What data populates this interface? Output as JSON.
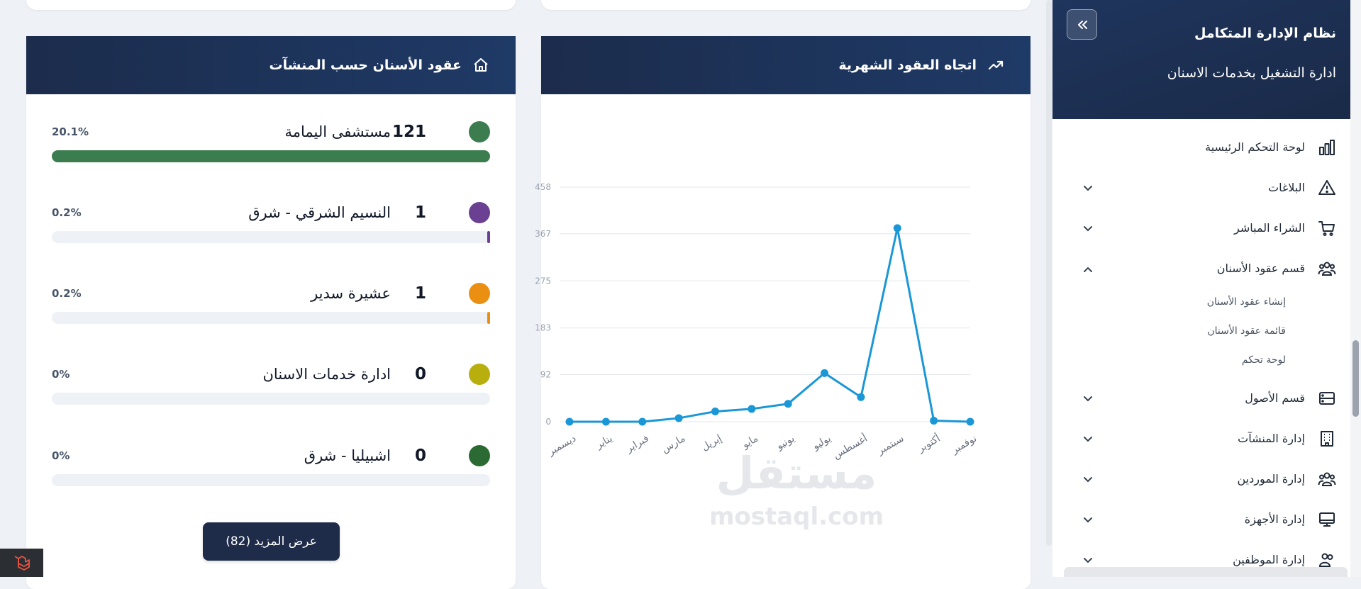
{
  "facilities_card": {
    "title": "عقود الأسنان حسب المنشآت",
    "more_button": "عرض المزيد (82)",
    "items": [
      {
        "name": "مستشفى اليمامة",
        "count": "121",
        "percent": "20.1%",
        "fill": 1.0,
        "color": "#3b7d4f"
      },
      {
        "name": "النسيم الشرقي - شرق",
        "count": "1",
        "percent": "0.2%",
        "fill": 0.005,
        "color": "#6b3f91"
      },
      {
        "name": "عشيرة سدير",
        "count": "1",
        "percent": "0.2%",
        "fill": 0.005,
        "color": "#ea8f12"
      },
      {
        "name": "ادارة خدمات الاسنان",
        "count": "0",
        "percent": "0%",
        "fill": 0,
        "color": "#b8ae0d"
      },
      {
        "name": "اشبيليا - شرق",
        "count": "0",
        "percent": "0%",
        "fill": 0,
        "color": "#2b6a32"
      }
    ]
  },
  "trend_card": {
    "title": "اتجاه العقود الشهرية"
  },
  "chart_data": {
    "type": "line",
    "title": "اتجاه العقود الشهرية",
    "categories": [
      "ديسمبر",
      "يناير",
      "فبراير",
      "مارس",
      "إبريل",
      "مايو",
      "يونيو",
      "يوليو",
      "أغسطس",
      "سبتمبر",
      "أكتوبر",
      "نوفمبر"
    ],
    "values": [
      0,
      0,
      0,
      7,
      20,
      25,
      35,
      95,
      48,
      378,
      2,
      0
    ],
    "y_ticks": [
      "0",
      "92",
      "183",
      "275",
      "367",
      "458"
    ],
    "ylim": [
      0,
      458
    ],
    "color": "#1a97d6",
    "grid": true
  },
  "watermark": {
    "arabic": "مستقل",
    "latin": "mostaql.com"
  },
  "sidebar": {
    "title": "نظام الإدارة المتكامل",
    "subtitle": "ادارة التشغيل بخدمات الاسنان",
    "items": [
      {
        "label": "لوحة التحكم الرئيسية",
        "icon": "bar-chart-icon",
        "chevron": "none"
      },
      {
        "label": "البلاغات",
        "icon": "warning-icon",
        "chevron": "down"
      },
      {
        "label": "الشراء المباشر",
        "icon": "cart-icon",
        "chevron": "down"
      },
      {
        "label": "قسم عقود الأسنان",
        "icon": "users-icon",
        "chevron": "up"
      },
      {
        "label": "قسم الأصول",
        "icon": "server-icon",
        "chevron": "down"
      },
      {
        "label": "إدارة المنشآت",
        "icon": "building-icon",
        "chevron": "down"
      },
      {
        "label": "إدارة الموردين",
        "icon": "users-icon",
        "chevron": "down"
      },
      {
        "label": "إدارة الأجهزة",
        "icon": "monitor-icon",
        "chevron": "down"
      },
      {
        "label": "إدارة الموظفين",
        "icon": "users-icon",
        "chevron": "down"
      }
    ],
    "submenu": [
      "إنشاء عقود الأسنان",
      "قائمة عقود الأسنان",
      "لوحة تحكم"
    ]
  }
}
